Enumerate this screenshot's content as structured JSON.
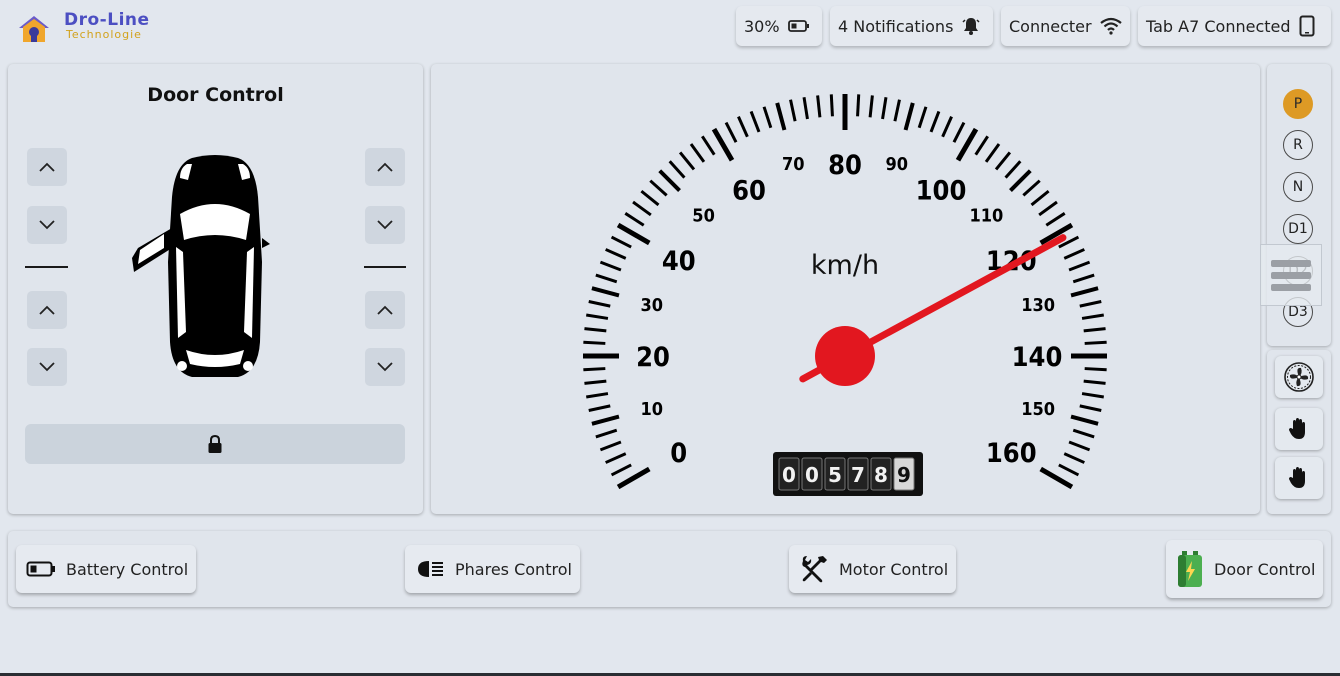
{
  "brand": {
    "name": "Dro-Line",
    "subtitle": "Technologie"
  },
  "status": {
    "battery": "30%",
    "notifications": "4 Notifications",
    "wifi": "Connecter",
    "device": "Tab A7 Connected"
  },
  "door_panel": {
    "title": "Door Control"
  },
  "speedometer": {
    "unit": "km/h",
    "speed": 121,
    "max": 160,
    "major_labels": [
      "0",
      "10",
      "20",
      "30",
      "40",
      "50",
      "60",
      "70",
      "80",
      "90",
      "100",
      "110",
      "120",
      "130",
      "140",
      "150",
      "160"
    ],
    "odometer": [
      "0",
      "0",
      "5",
      "7",
      "8",
      "9"
    ],
    "needle_color": "#e2171f"
  },
  "gears": {
    "items": [
      "P",
      "R",
      "N",
      "D1",
      "D2",
      "D3"
    ],
    "active": "P",
    "active_color": "#dd9a25"
  },
  "side_icons": [
    "fan-icon",
    "hand-icon",
    "hand-icon"
  ],
  "bottom": {
    "battery_control": "Battery Control",
    "phares_control": "Phares Control",
    "motor_control": "Motor Control",
    "door_control": "Door Control"
  }
}
